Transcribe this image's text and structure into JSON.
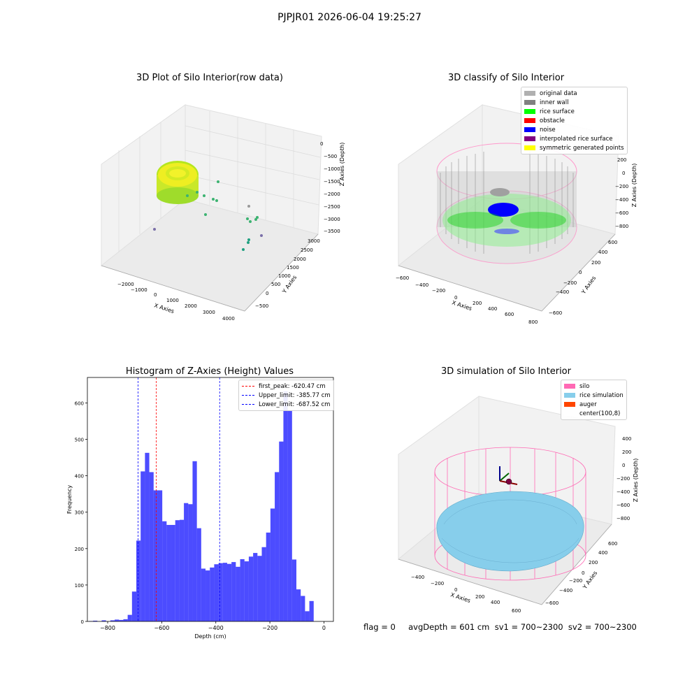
{
  "suptitle": "PJPJR01 2026-06-04 19:25:27",
  "panels": {
    "raw": {
      "title": "3D Plot of Silo Interior(row data)",
      "xlabel": "X Axies",
      "ylabel": "Y Axies",
      "zlabel": "Z Axies (Depth)",
      "xticks": [
        "−2000",
        "−1000",
        "0",
        "1000",
        "2000",
        "3000",
        "4000"
      ],
      "yticks": [
        "−500",
        "0",
        "500",
        "1000",
        "1500",
        "2000",
        "2500",
        "3000"
      ],
      "zticks": [
        "0",
        "−500",
        "−1000",
        "−1500",
        "−2000",
        "−2500",
        "−3000",
        "−3500"
      ]
    },
    "classify": {
      "title": "3D classify of Silo Interior",
      "xlabel": "X Axies",
      "ylabel": "Y Axies",
      "zlabel": "Z Axies (Depth)",
      "xticks": [
        "−600",
        "−400",
        "−200",
        "0",
        "200",
        "400",
        "600",
        "800"
      ],
      "yticks": [
        "−600",
        "−400",
        "−200",
        "0",
        "200",
        "400",
        "600"
      ],
      "zticks": [
        "200",
        "0",
        "−200",
        "−400",
        "−600",
        "−800"
      ],
      "legend": [
        {
          "label": "original data",
          "color": "#b0b0b0"
        },
        {
          "label": "inner wall",
          "color": "#808080"
        },
        {
          "label": "rice surface",
          "color": "#00ff00"
        },
        {
          "label": "obstacle",
          "color": "#ff0000"
        },
        {
          "label": "noise",
          "color": "#0000ff"
        },
        {
          "label": "interpolated rice surface",
          "color": "#800080"
        },
        {
          "label": "symmetric generated points",
          "color": "#ffff00"
        }
      ]
    },
    "simulation": {
      "title": "3D simulation of Silo Interior",
      "xlabel": "X Axies",
      "ylabel": "Y Axies",
      "zlabel": "Z Axies (Depth)",
      "xticks": [
        "−400",
        "−200",
        "0",
        "200",
        "400",
        "600"
      ],
      "yticks": [
        "−600",
        "−400",
        "−200",
        "0",
        "200",
        "400",
        "600"
      ],
      "zticks": [
        "400",
        "200",
        "0",
        "−200",
        "−400",
        "−600",
        "−800"
      ],
      "legend": [
        {
          "label": "silo",
          "color": "#ff69b4"
        },
        {
          "label": "rice simulation",
          "color": "#87ceeb"
        },
        {
          "label": "auger",
          "color": "#ff4500"
        },
        {
          "label": "center(100,8)",
          "color": "#ffffff"
        }
      ]
    }
  },
  "footer": "flag = 0     avgDepth = 601 cm  sv1 = 700~2300  sv2 = 700~2300",
  "chart_data": {
    "type": "bar",
    "title": "Histogram of Z-Axies (Height) Values",
    "xlabel": "Depth (cm)",
    "ylabel": "Frequency",
    "xlim": [
      -875,
      35
    ],
    "ylim": [
      0,
      670
    ],
    "xticks": [
      -800,
      -600,
      -400,
      -200,
      0
    ],
    "xtick_labels": [
      "−800",
      "−600",
      "−400",
      "−200",
      "0"
    ],
    "yticks": [
      0,
      100,
      200,
      300,
      400,
      500,
      600
    ],
    "bin_start": -870,
    "bin_width": 16,
    "values": [
      1,
      2,
      0,
      3,
      0,
      3,
      5,
      4,
      6,
      18,
      82,
      222,
      412,
      463,
      410,
      360,
      360,
      275,
      265,
      265,
      278,
      279,
      325,
      322,
      440,
      256,
      145,
      140,
      148,
      157,
      160,
      161,
      158,
      163,
      150,
      171,
      165,
      178,
      188,
      180,
      204,
      244,
      310,
      410,
      494,
      632,
      580,
      170,
      88,
      70,
      28,
      56
    ],
    "bar_color": "#0000ff",
    "vlines": [
      {
        "x": -620.47,
        "label": "first_peak: -620.47 cm",
        "color": "#ff0000"
      },
      {
        "x": -385.77,
        "label": "Upper_limit: -385.77 cm",
        "color": "#0000ff"
      },
      {
        "x": -687.52,
        "label": "Lower_limit: -687.52 cm",
        "color": "#0000ff"
      }
    ],
    "legend_position": "upper right"
  }
}
